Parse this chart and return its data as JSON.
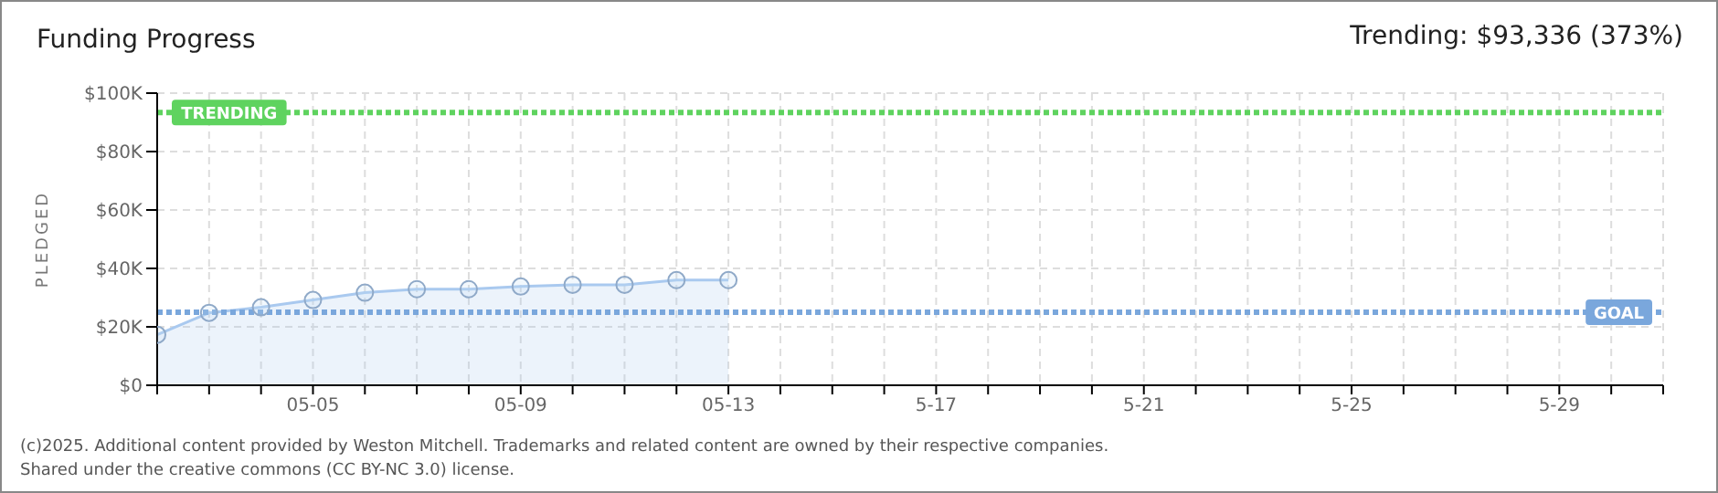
{
  "chart_data": {
    "type": "area",
    "title": "Funding Progress",
    "subtitle": "Trending: $93,336 (373%)",
    "ylabel": "PLEDGED",
    "x": [
      "2025-05-02",
      "2025-05-03",
      "2025-05-04",
      "2025-05-05",
      "2025-05-06",
      "2025-05-07",
      "2025-05-08",
      "2025-05-09",
      "2025-05-10",
      "2025-05-11",
      "2025-05-12",
      "2025-05-13"
    ],
    "series": [
      {
        "color": "#a9c9ef",
        "values": [
          17300,
          24800,
          26700,
          29200,
          31700,
          32900,
          32900,
          33800,
          34400,
          34400,
          36000,
          36000
        ]
      }
    ],
    "xlim": [
      "2025-05-02",
      "2025-05-31"
    ],
    "xticks": [
      {
        "value": "2025-05-02",
        "label": null
      },
      {
        "value": "2025-05-03",
        "label": null
      },
      {
        "value": "2025-05-04",
        "label": null
      },
      {
        "value": "2025-05-05",
        "label": "05-05"
      },
      {
        "value": "2025-05-06",
        "label": null
      },
      {
        "value": "2025-05-07",
        "label": null
      },
      {
        "value": "2025-05-08",
        "label": null
      },
      {
        "value": "2025-05-09",
        "label": "05-09"
      },
      {
        "value": "2025-05-10",
        "label": null
      },
      {
        "value": "2025-05-11",
        "label": null
      },
      {
        "value": "2025-05-12",
        "label": null
      },
      {
        "value": "2025-05-13",
        "label": "05-13"
      },
      {
        "value": "2025-05-14",
        "label": null
      },
      {
        "value": "2025-05-15",
        "label": null
      },
      {
        "value": "2025-05-16",
        "label": null
      },
      {
        "value": "2025-05-17",
        "label": "5-17"
      },
      {
        "value": "2025-05-18",
        "label": null
      },
      {
        "value": "2025-05-19",
        "label": null
      },
      {
        "value": "2025-05-20",
        "label": null
      },
      {
        "value": "2025-05-21",
        "label": "5-21"
      },
      {
        "value": "2025-05-22",
        "label": null
      },
      {
        "value": "2025-05-23",
        "label": null
      },
      {
        "value": "2025-05-24",
        "label": null
      },
      {
        "value": "2025-05-25",
        "label": "5-25"
      },
      {
        "value": "2025-05-26",
        "label": null
      },
      {
        "value": "2025-05-27",
        "label": null
      },
      {
        "value": "2025-05-28",
        "label": null
      },
      {
        "value": "2025-05-29",
        "label": "5-29"
      },
      {
        "value": "2025-05-30",
        "label": null
      },
      {
        "value": "2025-05-31",
        "label": null
      }
    ],
    "ylim": [
      0,
      100000
    ],
    "yticks": [
      {
        "value": 0,
        "label": "$0"
      },
      {
        "value": 20000,
        "label": "$20K"
      },
      {
        "value": 40000,
        "label": "$40K"
      },
      {
        "value": 60000,
        "label": "$60K"
      },
      {
        "value": 80000,
        "label": "$80K"
      },
      {
        "value": 100000,
        "label": "$100K"
      }
    ],
    "ref_lines": [
      {
        "axis": "y",
        "value": 93336,
        "label": "TRENDING",
        "color": "#5fd35f",
        "line_style": "dotted"
      },
      {
        "axis": "y",
        "value": 25000,
        "label": "GOAL",
        "color": "#7aa7dc",
        "line_style": "dotted"
      }
    ],
    "grid": true,
    "marker": "circle",
    "line_style": "solid",
    "annotations": [
      "(c)2025. Additional content provided by Weston Mitchell. Trademarks and related content are owned by their respective companies.",
      "Shared under the creative commons (CC BY-NC 3.0) license."
    ]
  }
}
